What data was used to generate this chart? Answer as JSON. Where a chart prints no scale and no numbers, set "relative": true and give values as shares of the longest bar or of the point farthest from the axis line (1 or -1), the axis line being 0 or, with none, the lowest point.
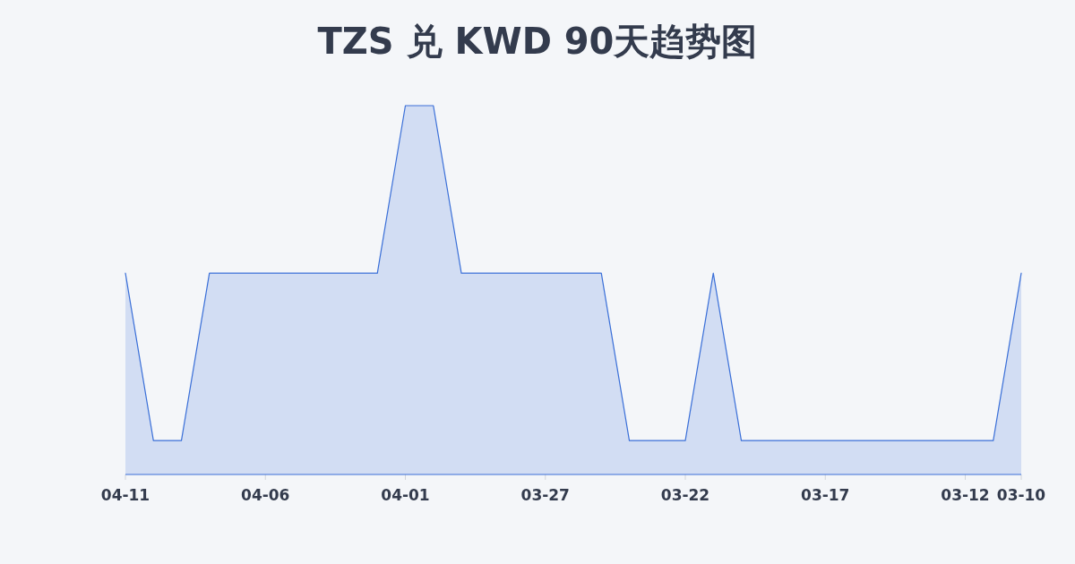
{
  "chart_data": {
    "type": "area",
    "title": "TZS 兑 KWD 90天趋势图",
    "relative": true,
    "categories": [
      "04-11",
      null,
      null,
      null,
      null,
      "04-06",
      null,
      null,
      null,
      null,
      "04-01",
      null,
      null,
      null,
      null,
      "03-27",
      null,
      null,
      null,
      null,
      "03-22",
      null,
      null,
      null,
      null,
      "03-17",
      null,
      null,
      null,
      null,
      "03-12",
      null,
      "03-10"
    ],
    "series": [
      {
        "color": "#3a6fd8",
        "values": [
          0.546,
          0.092,
          0.092,
          0.546,
          0.546,
          0.546,
          0.546,
          0.546,
          0.546,
          0.546,
          1,
          1,
          0.546,
          0.546,
          0.546,
          0.546,
          0.546,
          0.546,
          0.092,
          0.092,
          0.092,
          0.546,
          0.092,
          0.092,
          0.092,
          0.092,
          0.092,
          0.092,
          0.092,
          0.092,
          0.092,
          0.092,
          0.546
        ]
      }
    ]
  }
}
